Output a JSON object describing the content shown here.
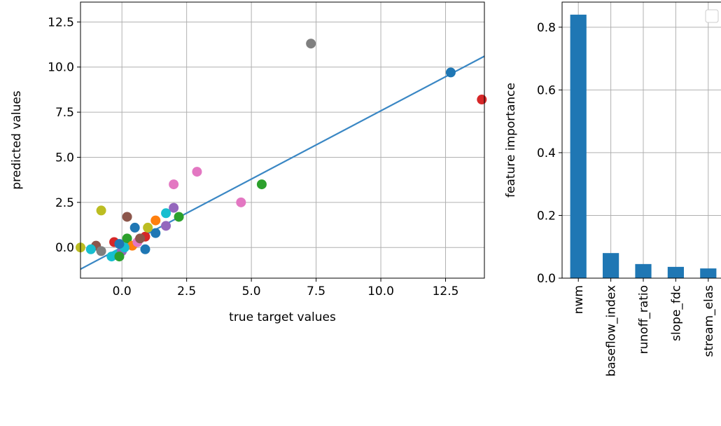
{
  "chart_data": [
    {
      "type": "scatter",
      "xlabel": "true target values",
      "ylabel": "predicted values",
      "x": [
        7.3,
        12.7,
        13.9,
        2.9,
        2.0,
        5.4,
        4.6,
        -0.8,
        0.2,
        2.0,
        2.2,
        1.7,
        1.7,
        1.3,
        0.5,
        1.3,
        0.9,
        0.9,
        -1.6,
        -1.0,
        -1.2,
        -0.8,
        -0.3,
        -0.4,
        -0.2,
        0.2,
        0.4,
        0.6,
        0.0,
        0.1,
        1.0,
        0.7,
        -0.1,
        -0.1
      ],
      "values": [
        11.3,
        9.7,
        8.2,
        4.2,
        3.5,
        3.5,
        2.5,
        2.05,
        1.7,
        2.2,
        1.7,
        1.9,
        1.2,
        1.5,
        1.1,
        0.8,
        -0.1,
        0.6,
        0.0,
        0.1,
        -0.1,
        -0.2,
        0.3,
        -0.5,
        -0.4,
        0.5,
        0.1,
        0.3,
        -0.2,
        0.0,
        1.1,
        0.5,
        0.2,
        -0.5
      ],
      "colors": [
        "#7f7f7f",
        "#1f77b4",
        "#d62728",
        "#e377c2",
        "#e377c2",
        "#2ca02c",
        "#e377c2",
        "#bcbd22",
        "#8c564b",
        "#9467bd",
        "#2ca02c",
        "#17becf",
        "#9467bd",
        "#ff7f0e",
        "#1f77b4",
        "#1f77b4",
        "#1f77b4",
        "#d62728",
        "#bcbd22",
        "#8c564b",
        "#17becf",
        "#7f7f7f",
        "#d62728",
        "#17becf",
        "#17becf",
        "#2ca02c",
        "#ff7f0e",
        "#e377c2",
        "#9467bd",
        "#17becf",
        "#bcbd22",
        "#8c564b",
        "#1f77b4",
        "#2ca02c"
      ],
      "fit_line": {
        "x": [
          -1.6,
          14.0
        ],
        "values": [
          -1.2,
          10.6
        ],
        "color": "#3a87c4"
      },
      "xlim": [
        -1.6,
        14.0
      ],
      "ylim": [
        -1.7,
        13.6
      ],
      "xticks": [
        {
          "value": 0,
          "label": "0.0"
        },
        2.5,
        {
          "value": 5,
          "label": "5.0"
        },
        7.5,
        {
          "value": 10,
          "label": "10.0"
        },
        12.5
      ],
      "yticks": [
        {
          "value": 0,
          "label": "0.0"
        },
        2.5,
        {
          "value": 5,
          "label": "5.0"
        },
        7.5,
        {
          "value": 10,
          "label": "10.0"
        },
        12.5
      ],
      "grid": true
    },
    {
      "type": "bar",
      "ylabel": "feature importance",
      "categories": [
        "nwm",
        "baseflow_index",
        "runoff_ratio",
        "slope_fdc",
        "stream_elas"
      ],
      "values": [
        0.84,
        0.08,
        0.045,
        0.036,
        0.031
      ],
      "color": "#1f77b4",
      "ylim": [
        0,
        0.88
      ],
      "yticks": [
        {
          "value": 0,
          "label": "0.0"
        },
        0.2,
        0.4,
        0.6,
        0.8
      ],
      "grid": true
    }
  ]
}
